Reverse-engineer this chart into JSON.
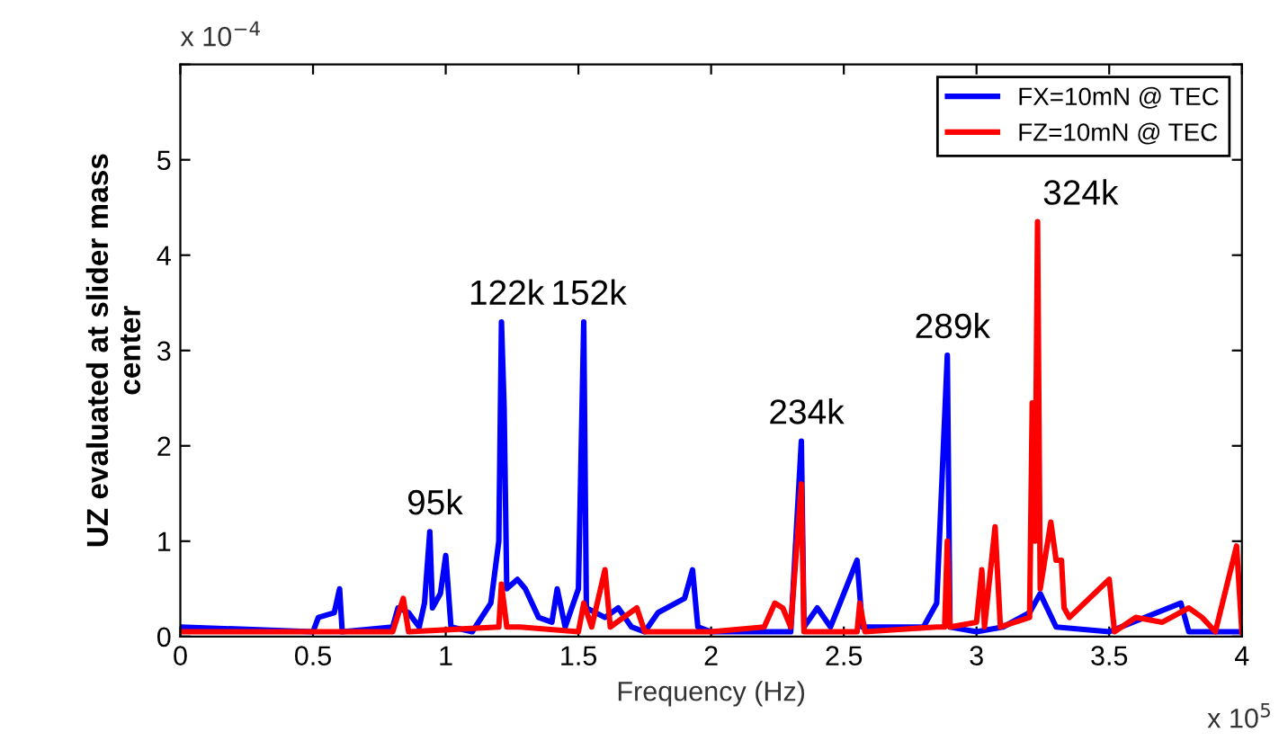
{
  "chart_data": {
    "type": "line",
    "xlabel": "Frequency (Hz)",
    "ylabel": "UZ evaluated at slider mass\ncenter",
    "xlim": [
      0,
      4
    ],
    "ylim": [
      0,
      6
    ],
    "xticks": [
      0,
      0.5,
      1,
      1.5,
      2,
      2.5,
      3,
      3.5,
      4
    ],
    "yticks": [
      0,
      1,
      2,
      3,
      4,
      5,
      {
        "value": 6,
        "label": null
      }
    ],
    "grid": false,
    "legend": "top right",
    "marker": "none",
    "line_style": "solid",
    "series": [
      {
        "name": "FX=10mN @ TEC",
        "color": "#0000ff",
        "x": [
          0,
          0.5,
          0.52,
          0.58,
          0.6,
          0.61,
          0.8,
          0.82,
          0.86,
          0.9,
          0.92,
          0.94,
          0.95,
          0.98,
          1.0,
          1.02,
          1.1,
          1.17,
          1.2,
          1.21,
          1.22,
          1.23,
          1.27,
          1.3,
          1.35,
          1.4,
          1.42,
          1.45,
          1.5,
          1.52,
          1.53,
          1.6,
          1.65,
          1.7,
          1.75,
          1.8,
          1.9,
          1.93,
          1.95,
          2.0,
          2.3,
          2.34,
          2.35,
          2.4,
          2.45,
          2.55,
          2.57,
          2.8,
          2.85,
          2.89,
          2.9,
          3.0,
          3.1,
          3.2,
          3.24,
          3.3,
          3.5,
          3.77,
          3.8,
          4.0
        ],
        "values": [
          0.1,
          0.05,
          0.2,
          0.25,
          0.5,
          0.05,
          0.1,
          0.3,
          0.25,
          0.1,
          0.35,
          1.1,
          0.3,
          0.45,
          0.85,
          0.1,
          0.05,
          0.35,
          1.0,
          3.3,
          2.4,
          0.5,
          0.6,
          0.5,
          0.2,
          0.15,
          0.5,
          0.1,
          0.5,
          3.3,
          0.3,
          0.2,
          0.3,
          0.1,
          0.05,
          0.25,
          0.4,
          0.7,
          0.1,
          0.05,
          0.05,
          2.05,
          0.1,
          0.3,
          0.1,
          0.8,
          0.1,
          0.1,
          0.35,
          2.95,
          0.1,
          0.05,
          0.1,
          0.25,
          0.45,
          0.1,
          0.05,
          0.35,
          0.05,
          0.05
        ]
      },
      {
        "name": "FZ=10mN @ TEC",
        "color": "#ff0000",
        "x": [
          0,
          0.8,
          0.84,
          0.86,
          1.2,
          1.21,
          1.23,
          1.28,
          1.5,
          1.52,
          1.55,
          1.6,
          1.62,
          1.72,
          1.75,
          2.0,
          2.2,
          2.24,
          2.27,
          2.3,
          2.34,
          2.35,
          2.55,
          2.56,
          2.58,
          2.85,
          2.88,
          2.89,
          2.9,
          3.0,
          3.02,
          3.03,
          3.07,
          3.09,
          3.2,
          3.21,
          3.22,
          3.23,
          3.24,
          3.28,
          3.3,
          3.32,
          3.33,
          3.35,
          3.5,
          3.52,
          3.6,
          3.7,
          3.8,
          3.85,
          3.9,
          3.98,
          4.0
        ],
        "values": [
          0.05,
          0.05,
          0.4,
          0.05,
          0.1,
          0.55,
          0.1,
          0.1,
          0.05,
          0.35,
          0.1,
          0.7,
          0.1,
          0.3,
          0.05,
          0.05,
          0.1,
          0.35,
          0.3,
          0.1,
          1.6,
          0.05,
          0.05,
          0.35,
          0.05,
          0.1,
          0.1,
          1.0,
          0.1,
          0.15,
          0.7,
          0.1,
          1.15,
          0.1,
          0.2,
          2.45,
          1.0,
          4.35,
          0.5,
          1.2,
          0.8,
          0.8,
          0.3,
          0.2,
          0.6,
          0.05,
          0.2,
          0.15,
          0.3,
          0.2,
          0.05,
          0.95,
          0.05
        ]
      }
    ],
    "annotations": [
      {
        "text": "95k",
        "x": 0.94,
        "y": 1.1
      },
      {
        "text": "122k",
        "x": 1.21,
        "y": 3.3
      },
      {
        "text": "152k",
        "x": 1.52,
        "y": 3.3
      },
      {
        "text": "234k",
        "x": 2.34,
        "y": 2.05
      },
      {
        "text": "289k",
        "x": 2.89,
        "y": 2.95
      },
      {
        "text": "324k",
        "x": 3.23,
        "y": 4.35
      },
      "x 10$^{−4}$",
      "x 10$^{5}$"
    ]
  }
}
